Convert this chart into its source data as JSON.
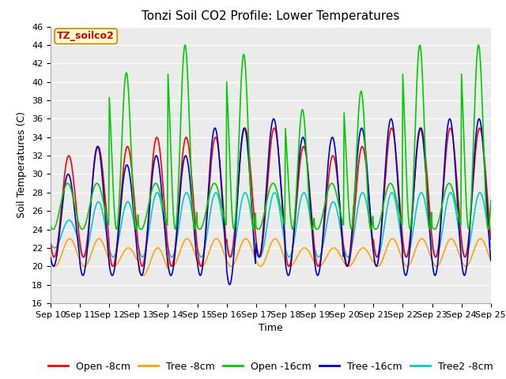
{
  "title": "Tonzi Soil CO2 Profile: Lower Temperatures",
  "xlabel": "Time",
  "ylabel": "Soil Temperatures (C)",
  "ylim": [
    16,
    46
  ],
  "yticks": [
    16,
    18,
    20,
    22,
    24,
    26,
    28,
    30,
    32,
    34,
    36,
    38,
    40,
    42,
    44,
    46
  ],
  "xtick_labels": [
    "Sep 10",
    "Sep 11",
    "Sep 12",
    "Sep 13",
    "Sep 14",
    "Sep 15",
    "Sep 16",
    "Sep 17",
    "Sep 18",
    "Sep 19",
    "Sep 20",
    "Sep 21",
    "Sep 22",
    "Sep 23",
    "Sep 24",
    "Sep 25"
  ],
  "series": {
    "Open -8cm": {
      "color": "#ff0000",
      "lw": 1.2
    },
    "Tree -8cm": {
      "color": "#ffa500",
      "lw": 1.2
    },
    "Open -16cm": {
      "color": "#00cc00",
      "lw": 1.2
    },
    "Tree -16cm": {
      "color": "#0000cc",
      "lw": 1.2
    },
    "Tree2 -8cm": {
      "color": "#00cccc",
      "lw": 1.2
    }
  },
  "annotation_text": "TZ_soilco2",
  "annotation_color": "#cc0000",
  "annotation_bg": "#ffffcc",
  "annotation_border": "#cc8800",
  "plot_bg": "#ebebeb",
  "grid_color": "#ffffff",
  "title_fontsize": 11,
  "axis_fontsize": 9,
  "tick_fontsize": 8,
  "legend_fontsize": 9
}
